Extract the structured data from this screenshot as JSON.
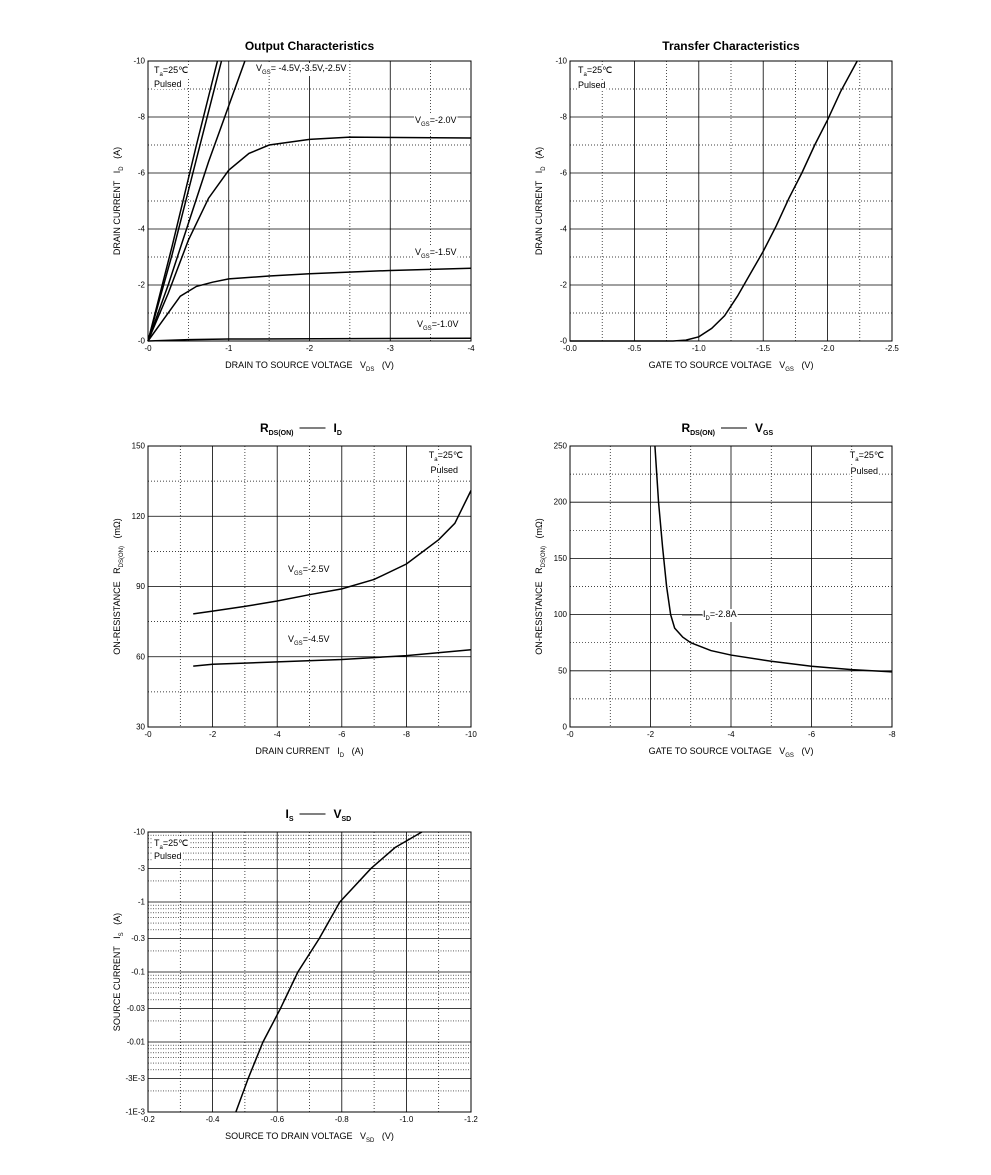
{
  "chart_data": [
    {
      "type": "line",
      "title": [
        [
          "Output Characteristics"
        ]
      ],
      "xlabel": [
        "DRAIN TO SOURCE VOLTAGE   V",
        "DS",
        "   (V)"
      ],
      "ylabel": [
        "DRAIN CURRENT   I",
        "D",
        "   (A)"
      ],
      "xlim": [
        0,
        -4
      ],
      "ylim": [
        0,
        -10
      ],
      "xticks": [
        {
          "value": 0,
          "label": "-0"
        },
        -1,
        -2,
        -3,
        -4
      ],
      "yticks": [
        {
          "value": 0,
          "label": "-0"
        },
        -2,
        -4,
        -6,
        -8,
        -10
      ],
      "grid": true,
      "minor_grid": true,
      "color": "#000000",
      "annotations": [
        [
          "T",
          "a",
          "=25℃"
        ],
        [
          "Pulsed"
        ],
        [
          "V",
          "GS",
          "= -4.5V,-3.5V,-2.5V"
        ],
        [
          "V",
          "GS",
          "=-2.0V"
        ],
        [
          "V",
          "GS",
          "=-1.5V"
        ],
        [
          "V",
          "GS",
          "=-1.0V"
        ]
      ],
      "series": [
        {
          "x": [
            0,
            -0.3,
            -0.6,
            -0.86
          ],
          "values": [
            0,
            -3.4,
            -7.0,
            -10
          ]
        },
        {
          "x": [
            0,
            -0.3,
            -0.6,
            -0.91
          ],
          "values": [
            0,
            -3.1,
            -6.5,
            -10
          ]
        },
        {
          "x": [
            0,
            -0.25,
            -0.5,
            -0.75,
            -1,
            -1.2
          ],
          "values": [
            0,
            -2.0,
            -4.2,
            -6.4,
            -8.4,
            -10
          ]
        },
        {
          "x": [
            0,
            -0.25,
            -0.5,
            -0.75,
            -1,
            -1.25,
            -1.5,
            -2,
            -2.5,
            -4
          ],
          "values": [
            0,
            -1.7,
            -3.6,
            -5.1,
            -6.1,
            -6.7,
            -7.0,
            -7.2,
            -7.28,
            -7.25
          ]
        },
        {
          "x": [
            0,
            -0.2,
            -0.4,
            -0.6,
            -0.8,
            -1,
            -1.5,
            -2,
            -3,
            -4
          ],
          "values": [
            0,
            -0.8,
            -1.6,
            -1.95,
            -2.1,
            -2.22,
            -2.32,
            -2.4,
            -2.52,
            -2.6
          ]
        },
        {
          "x": [
            0,
            -0.5,
            -1,
            -4
          ],
          "values": [
            0,
            -0.05,
            -0.07,
            -0.1
          ]
        }
      ]
    },
    {
      "type": "line",
      "title": [
        [
          "Transfer Characteristics"
        ]
      ],
      "xlabel": [
        "GATE TO SOURCE VOLTAGE   V",
        "GS",
        "   (V)"
      ],
      "ylabel": [
        "DRAIN CURRENT   I",
        "D",
        "   (A)"
      ],
      "xlim": [
        0,
        -2.5
      ],
      "ylim": [
        0,
        -10
      ],
      "xticks": [
        {
          "value": 0,
          "label": "-0.0"
        },
        -0.5,
        {
          "value": -1,
          "label": "-1.0"
        },
        -1.5,
        {
          "value": -2,
          "label": "-2.0"
        },
        -2.5
      ],
      "yticks": [
        {
          "value": 0,
          "label": "-0"
        },
        -2,
        -4,
        -6,
        -8,
        -10
      ],
      "grid": true,
      "minor_grid": true,
      "color": "#000000",
      "annotations": [
        [
          "T",
          "a",
          "=25℃"
        ],
        [
          "Pulsed"
        ]
      ],
      "series": [
        {
          "x": [
            0,
            -0.8,
            -0.9,
            -1.0,
            -1.1,
            -1.2,
            -1.3,
            -1.4,
            -1.5,
            -1.6,
            -1.7,
            -1.8,
            -1.9,
            -2.0,
            -2.1,
            -2.23
          ],
          "values": [
            0,
            0,
            -0.03,
            -0.15,
            -0.45,
            -0.9,
            -1.6,
            -2.4,
            -3.2,
            -4.1,
            -5.1,
            -6.0,
            -7.0,
            -7.9,
            -8.9,
            -10
          ]
        }
      ]
    },
    {
      "type": "line",
      "title": [
        [
          "R",
          "DS(ON)"
        ],
        [
          "I",
          "D"
        ]
      ],
      "xlabel": [
        "DRAIN CURRENT   I",
        "D",
        "   (A)"
      ],
      "ylabel": [
        "ON-RESISTANCE   R",
        "DS(ON)",
        "   (mΩ)"
      ],
      "xlim": [
        0,
        -10
      ],
      "ylim": [
        30,
        150
      ],
      "xticks": [
        {
          "value": 0,
          "label": "-0"
        },
        -2,
        -4,
        -6,
        -8,
        -10
      ],
      "yticks": [
        30,
        60,
        90,
        120,
        150
      ],
      "grid": true,
      "minor_grid": true,
      "color": "#000000",
      "annotations": [
        [
          "T",
          "a",
          "=25℃"
        ],
        [
          "Pulsed"
        ],
        [
          "V",
          "GS",
          "=-2.5V"
        ],
        [
          "V",
          "GS",
          "=-4.5V"
        ]
      ],
      "series": [
        {
          "x": [
            -1.4,
            -2,
            -3,
            -4,
            -5,
            -6,
            -7,
            -8,
            -9,
            -9.5,
            -10
          ],
          "values": [
            78.3,
            79.5,
            81.5,
            83.8,
            86.5,
            89,
            93,
            99.6,
            110,
            117,
            131
          ]
        },
        {
          "x": [
            -1.4,
            -2,
            -4,
            -6,
            -8,
            -10
          ],
          "values": [
            56,
            56.8,
            57.8,
            58.8,
            60.5,
            63
          ]
        }
      ]
    },
    {
      "type": "line",
      "title": [
        [
          "R",
          "DS(ON)"
        ],
        [
          "V",
          "GS"
        ]
      ],
      "xlabel": [
        "GATE TO SOURCE VOLTAGE   V",
        "GS",
        "   (V)"
      ],
      "ylabel": [
        "ON-RESISTANCE   R",
        "DS(ON)",
        "   (mΩ)"
      ],
      "xlim": [
        0,
        -8
      ],
      "ylim": [
        0,
        250
      ],
      "xticks": [
        {
          "value": 0,
          "label": "-0"
        },
        -2,
        -4,
        -6,
        -8
      ],
      "yticks": [
        0,
        50,
        100,
        150,
        200,
        250
      ],
      "grid": true,
      "minor_grid": true,
      "color": "#000000",
      "annotations": [
        [
          "T",
          "a",
          "=25℃"
        ],
        [
          "Pulsed"
        ],
        [
          "I",
          "D",
          "=-2.8A"
        ]
      ],
      "series": [
        {
          "x": [
            -2.11,
            -2.2,
            -2.3,
            -2.4,
            -2.5,
            -2.6,
            -2.8,
            -3,
            -3.5,
            -4,
            -5,
            -6,
            -7,
            -8
          ],
          "values": [
            250,
            200,
            160,
            125,
            100,
            88,
            80,
            75,
            68,
            64,
            58.5,
            54,
            51,
            49
          ]
        }
      ]
    },
    {
      "type": "line",
      "title": [
        [
          "I",
          "S"
        ],
        [
          "V",
          "SD"
        ]
      ],
      "xlabel": [
        "SOURCE TO DRAIN VOLTAGE   V",
        "SD",
        "   (V)"
      ],
      "ylabel": [
        "SOURCE CURRENT   I",
        "S",
        "   (A)"
      ],
      "xlim": [
        -0.2,
        -1.2
      ],
      "ylim": [
        -0.001,
        -10
      ],
      "ylog": true,
      "xticks": [
        -0.2,
        -0.4,
        -0.6,
        -0.8,
        {
          "value": -1,
          "label": "-1.0"
        },
        -1.2
      ],
      "yticks": [
        -10,
        -3,
        -1,
        -0.3,
        -0.1,
        -0.03,
        -0.01,
        {
          "value": -0.003,
          "label": "-3E-3"
        },
        {
          "value": -0.001,
          "label": "-1E-3"
        }
      ],
      "grid": true,
      "minor_grid": true,
      "color": "#000000",
      "annotations": [
        [
          "T",
          "a",
          "=25℃"
        ],
        [
          "Pulsed"
        ]
      ],
      "series": [
        {
          "x": [
            -0.472,
            -0.51,
            -0.556,
            -0.61,
            -0.664,
            -0.73,
            -0.794,
            -0.89,
            -0.965,
            -1.048
          ],
          "values": [
            -0.001,
            -0.003,
            -0.01,
            -0.03,
            -0.1,
            -0.3,
            -1,
            -3,
            -6,
            -10
          ]
        }
      ]
    }
  ]
}
